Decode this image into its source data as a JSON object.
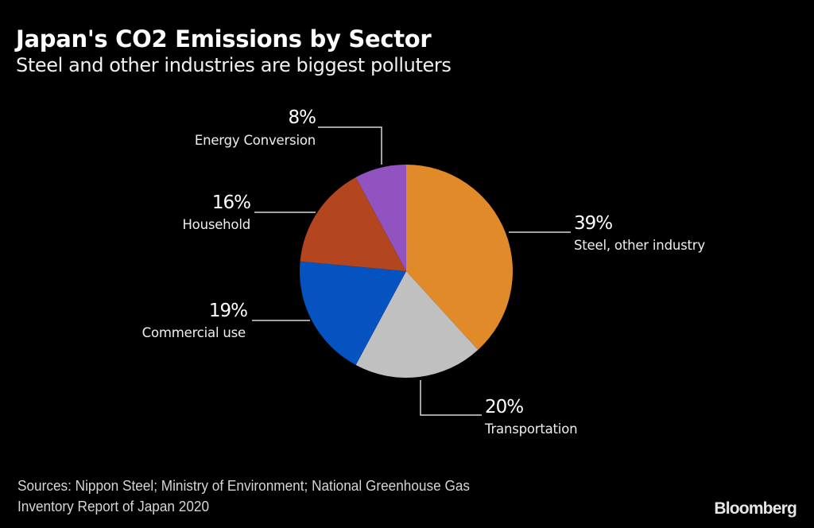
{
  "header": {
    "title": "Japan's CO2 Emissions by Sector",
    "subtitle": "Steel and other industries are biggest polluters"
  },
  "footer": {
    "source_line1": "Sources: Nippon Steel; Ministry of Environment; National Greenhouse Gas",
    "source_line2": "Inventory Report of Japan 2020",
    "brand": "Bloomberg"
  },
  "chart_data": {
    "type": "pie",
    "title": "Japan's CO2 Emissions by Sector",
    "subtitle": "Steel and other industries are biggest polluters",
    "start": "12 o'clock, clockwise",
    "slices": [
      {
        "name": "Steel, other industry",
        "value": 39,
        "label": "39%",
        "color": "#E08A2A"
      },
      {
        "name": "Transportation",
        "value": 20,
        "label": "20%",
        "color": "#C0C0C0"
      },
      {
        "name": "Commercial use",
        "value": 19,
        "label": "19%",
        "color": "#0453C0"
      },
      {
        "name": "Household",
        "value": 16,
        "label": "16%",
        "color": "#B4461F"
      },
      {
        "name": "Energy Conversion",
        "value": 8,
        "label": "8%",
        "color": "#9053BF"
      }
    ],
    "unit": "%"
  }
}
